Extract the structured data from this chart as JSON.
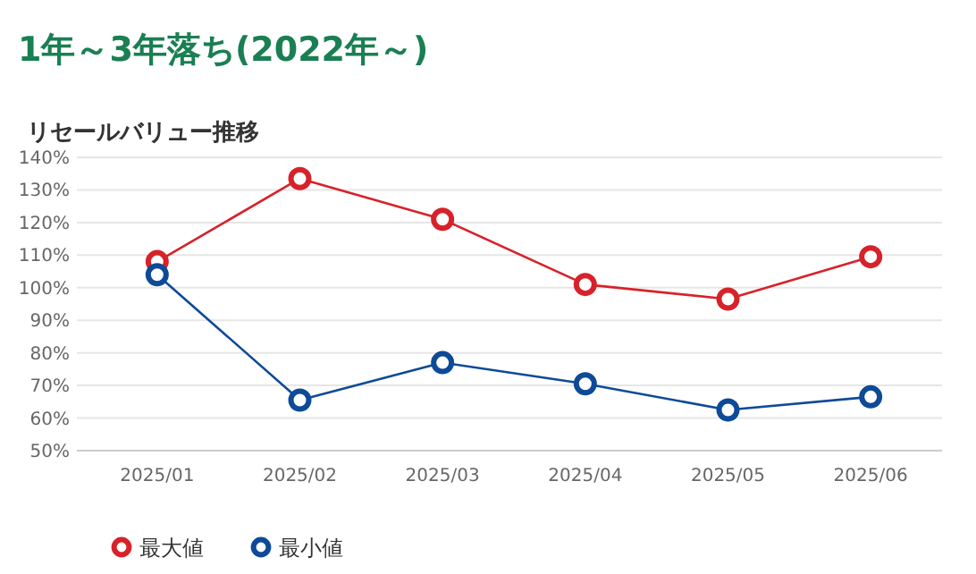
{
  "chart_data": {
    "type": "line",
    "title": "1年～3年落ち(2022年～)",
    "subtitle": "リセールバリュー推移",
    "categories": [
      "2025/01",
      "2025/02",
      "2025/03",
      "2025/04",
      "2025/05",
      "2025/06"
    ],
    "series": [
      {
        "name": "最大値",
        "color": "#d7222a",
        "values": [
          108,
          133.5,
          121,
          101,
          96.5,
          109.5
        ]
      },
      {
        "name": "最小値",
        "color": "#0d4a97",
        "values": [
          104,
          65.5,
          77,
          70.5,
          62.5,
          66.5
        ]
      }
    ],
    "ylim": [
      50,
      140
    ],
    "yticks": [
      {
        "value": 50,
        "label": "50%"
      },
      {
        "value": 60,
        "label": "60%"
      },
      {
        "value": 70,
        "label": "70%"
      },
      {
        "value": 80,
        "label": "80%"
      },
      {
        "value": 90,
        "label": "90%"
      },
      {
        "value": 100,
        "label": "100%"
      },
      {
        "value": 110,
        "label": "110%"
      },
      {
        "value": 120,
        "label": "120%"
      },
      {
        "value": 130,
        "label": "130%"
      },
      {
        "value": 140,
        "label": "140%"
      }
    ],
    "grid": "y",
    "legend": "bottom",
    "marker": "circle",
    "line_style": "solid"
  }
}
